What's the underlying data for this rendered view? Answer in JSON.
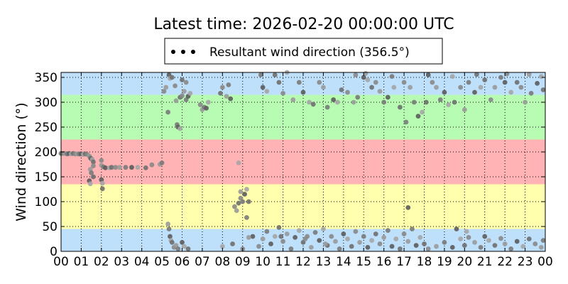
{
  "chart_data": {
    "type": "scatter",
    "title": "Latest time: 2026-02-20 00:00:00 UTC",
    "xlabel": "",
    "ylabel": "Wind direction (°)",
    "xlim": [
      0,
      24
    ],
    "ylim": [
      0,
      360
    ],
    "xticks": [
      "00",
      "01",
      "02",
      "03",
      "04",
      "05",
      "06",
      "07",
      "08",
      "09",
      "10",
      "11",
      "12",
      "13",
      "14",
      "15",
      "16",
      "17",
      "18",
      "19",
      "20",
      "21",
      "22",
      "23",
      "00"
    ],
    "yticks": [
      0,
      50,
      100,
      150,
      200,
      250,
      300,
      350
    ],
    "grid": true,
    "legend_position": "top-center",
    "series": [
      {
        "name": "Resultant wind direction (356.5°)",
        "color": "#808080"
      }
    ],
    "bands": [
      {
        "from": 0,
        "to": 45,
        "color": "#bfe0fb"
      },
      {
        "from": 45,
        "to": 135,
        "color": "#ffffad"
      },
      {
        "from": 135,
        "to": 225,
        "color": "#ffb3b4"
      },
      {
        "from": 225,
        "to": 315,
        "color": "#b7fcb2"
      },
      {
        "from": 315,
        "to": 360,
        "color": "#bfe0fb"
      }
    ],
    "points": [
      [
        0.0,
        197
      ],
      [
        0.1,
        197
      ],
      [
        0.2,
        197
      ],
      [
        0.3,
        196
      ],
      [
        0.4,
        197
      ],
      [
        0.5,
        196
      ],
      [
        0.6,
        197
      ],
      [
        0.7,
        196
      ],
      [
        0.8,
        196
      ],
      [
        0.9,
        196
      ],
      [
        1.0,
        196
      ],
      [
        1.1,
        195
      ],
      [
        1.2,
        196
      ],
      [
        1.3,
        195
      ],
      [
        1.4,
        192
      ],
      [
        1.45,
        188
      ],
      [
        1.5,
        186
      ],
      [
        1.55,
        185
      ],
      [
        1.6,
        180
      ],
      [
        1.6,
        172
      ],
      [
        1.45,
        165
      ],
      [
        1.5,
        158
      ],
      [
        1.4,
        142
      ],
      [
        1.45,
        136
      ],
      [
        1.6,
        150
      ],
      [
        2.0,
        183
      ],
      [
        2.0,
        173
      ],
      [
        2.1,
        170
      ],
      [
        2.2,
        168
      ],
      [
        2.4,
        168
      ],
      [
        2.5,
        169
      ],
      [
        2.7,
        169
      ],
      [
        2.9,
        169
      ],
      [
        3.2,
        169
      ],
      [
        3.5,
        169
      ],
      [
        3.8,
        169
      ],
      [
        4.2,
        168
      ],
      [
        4.5,
        174
      ],
      [
        4.9,
        175
      ],
      [
        5.0,
        178
      ],
      [
        2.0,
        144
      ],
      [
        2.05,
        137
      ],
      [
        2.05,
        126
      ],
      [
        5.1,
        322
      ],
      [
        5.2,
        330
      ],
      [
        5.3,
        280
      ],
      [
        5.35,
        355
      ],
      [
        5.4,
        348
      ],
      [
        5.5,
        350
      ],
      [
        5.65,
        333
      ],
      [
        5.7,
        303
      ],
      [
        5.75,
        255
      ],
      [
        5.8,
        250
      ],
      [
        5.9,
        247
      ],
      [
        5.9,
        310
      ],
      [
        6.0,
        313
      ],
      [
        6.1,
        322
      ],
      [
        6.2,
        305
      ],
      [
        6.3,
        312
      ],
      [
        6.4,
        318
      ],
      [
        6.0,
        345
      ],
      [
        6.2,
        340
      ],
      [
        5.3,
        55
      ],
      [
        5.35,
        45
      ],
      [
        5.4,
        30
      ],
      [
        5.45,
        22
      ],
      [
        5.5,
        18
      ],
      [
        5.6,
        8
      ],
      [
        5.7,
        12
      ],
      [
        5.8,
        5
      ],
      [
        6.0,
        18
      ],
      [
        6.1,
        10
      ],
      [
        6.3,
        5
      ],
      [
        6.9,
        295
      ],
      [
        7.0,
        285
      ],
      [
        7.1,
        290
      ],
      [
        7.2,
        288
      ],
      [
        7.3,
        300
      ],
      [
        7.9,
        318
      ],
      [
        8.0,
        330
      ],
      [
        8.2,
        312
      ],
      [
        8.3,
        335
      ],
      [
        8.4,
        307
      ],
      [
        8.8,
        178
      ],
      [
        8.8,
        97
      ],
      [
        8.9,
        107
      ],
      [
        8.9,
        120
      ],
      [
        9.0,
        100
      ],
      [
        9.1,
        115
      ],
      [
        9.2,
        125
      ],
      [
        9.3,
        100
      ],
      [
        8.6,
        90
      ],
      [
        8.7,
        82
      ],
      [
        9.2,
        68
      ],
      [
        9.5,
        30
      ],
      [
        8.0,
        10
      ],
      [
        8.5,
        15
      ],
      [
        9.0,
        5
      ],
      [
        9.3,
        28
      ],
      [
        9.9,
        355
      ],
      [
        10.0,
        330
      ],
      [
        10.2,
        322
      ],
      [
        10.8,
        340
      ],
      [
        11.0,
        318
      ],
      [
        11.5,
        305
      ],
      [
        11.8,
        340
      ],
      [
        12.0,
        320
      ],
      [
        12.3,
        300
      ],
      [
        12.5,
        296
      ],
      [
        12.8,
        340
      ],
      [
        13.0,
        330
      ],
      [
        13.2,
        290
      ],
      [
        13.5,
        305
      ],
      [
        13.7,
        300
      ],
      [
        13.9,
        325
      ],
      [
        14.2,
        320
      ],
      [
        14.5,
        300
      ],
      [
        14.7,
        310
      ],
      [
        15.0,
        350
      ],
      [
        15.2,
        345
      ],
      [
        15.4,
        330
      ],
      [
        15.6,
        340
      ],
      [
        15.8,
        322
      ],
      [
        16.0,
        300
      ],
      [
        16.2,
        310
      ],
      [
        16.5,
        330
      ],
      [
        16.8,
        290
      ],
      [
        17.0,
        340
      ],
      [
        17.3,
        330
      ],
      [
        17.5,
        300
      ],
      [
        17.7,
        272
      ],
      [
        17.9,
        280
      ],
      [
        18.1,
        300
      ],
      [
        18.4,
        340
      ],
      [
        18.6,
        330
      ],
      [
        18.8,
        305
      ],
      [
        19.0,
        320
      ],
      [
        19.2,
        295
      ],
      [
        19.5,
        300
      ],
      [
        19.8,
        330
      ],
      [
        20.0,
        285
      ],
      [
        20.2,
        340
      ],
      [
        20.5,
        320
      ],
      [
        20.8,
        330
      ],
      [
        21.0,
        345
      ],
      [
        21.3,
        305
      ],
      [
        21.5,
        330
      ],
      [
        21.8,
        350
      ],
      [
        22.0,
        340
      ],
      [
        22.3,
        320
      ],
      [
        22.6,
        340
      ],
      [
        22.8,
        330
      ],
      [
        23.0,
        300
      ],
      [
        23.3,
        318
      ],
      [
        23.6,
        338
      ],
      [
        23.8,
        352
      ],
      [
        23.9,
        325
      ],
      [
        14.6,
        355
      ],
      [
        15.1,
        358
      ],
      [
        16.4,
        352
      ],
      [
        18.2,
        355
      ],
      [
        19.4,
        352
      ],
      [
        20.6,
        356
      ],
      [
        22.1,
        357
      ],
      [
        23.2,
        356
      ],
      [
        17.1,
        260
      ],
      [
        17.2,
        88
      ],
      [
        11.2,
        360
      ],
      [
        10.6,
        355
      ],
      [
        9.8,
        10
      ],
      [
        10.0,
        25
      ],
      [
        10.2,
        40
      ],
      [
        10.4,
        15
      ],
      [
        10.6,
        30
      ],
      [
        10.8,
        48
      ],
      [
        11.0,
        20
      ],
      [
        11.2,
        35
      ],
      [
        11.4,
        5
      ],
      [
        11.6,
        28
      ],
      [
        11.8,
        42
      ],
      [
        12.0,
        18
      ],
      [
        12.2,
        30
      ],
      [
        12.4,
        8
      ],
      [
        12.6,
        38
      ],
      [
        12.8,
        22
      ],
      [
        13.0,
        45
      ],
      [
        13.2,
        12
      ],
      [
        13.4,
        30
      ],
      [
        13.6,
        20
      ],
      [
        13.8,
        5
      ],
      [
        14.0,
        35
      ],
      [
        14.2,
        25
      ],
      [
        14.4,
        10
      ],
      [
        14.6,
        40
      ],
      [
        14.8,
        18
      ],
      [
        15.0,
        30
      ],
      [
        15.2,
        8
      ],
      [
        15.4,
        22
      ],
      [
        15.6,
        35
      ],
      [
        15.8,
        15
      ],
      [
        16.0,
        28
      ],
      [
        16.2,
        42
      ],
      [
        16.4,
        10
      ],
      [
        16.6,
        25
      ],
      [
        16.8,
        5
      ],
      [
        17.0,
        35
      ],
      [
        17.2,
        20
      ],
      [
        17.4,
        45
      ],
      [
        17.6,
        12
      ],
      [
        17.8,
        28
      ],
      [
        18.0,
        15
      ],
      [
        18.2,
        5
      ],
      [
        18.6,
        10
      ],
      [
        19.0,
        18
      ],
      [
        19.4,
        8
      ],
      [
        19.8,
        25
      ],
      [
        20.0,
        12
      ],
      [
        20.2,
        28
      ],
      [
        20.5,
        18
      ],
      [
        20.8,
        8
      ],
      [
        21.0,
        30
      ],
      [
        21.2,
        22
      ],
      [
        21.5,
        12
      ],
      [
        21.8,
        26
      ],
      [
        22.0,
        15
      ],
      [
        22.3,
        5
      ],
      [
        22.6,
        20
      ],
      [
        22.9,
        10
      ],
      [
        23.2,
        25
      ],
      [
        23.5,
        15
      ],
      [
        23.8,
        8
      ],
      [
        23.9,
        22
      ],
      [
        19.6,
        45
      ],
      [
        20.1,
        40
      ],
      [
        10.9,
        30
      ],
      [
        12.1,
        25
      ],
      [
        13.1,
        15
      ]
    ]
  }
}
